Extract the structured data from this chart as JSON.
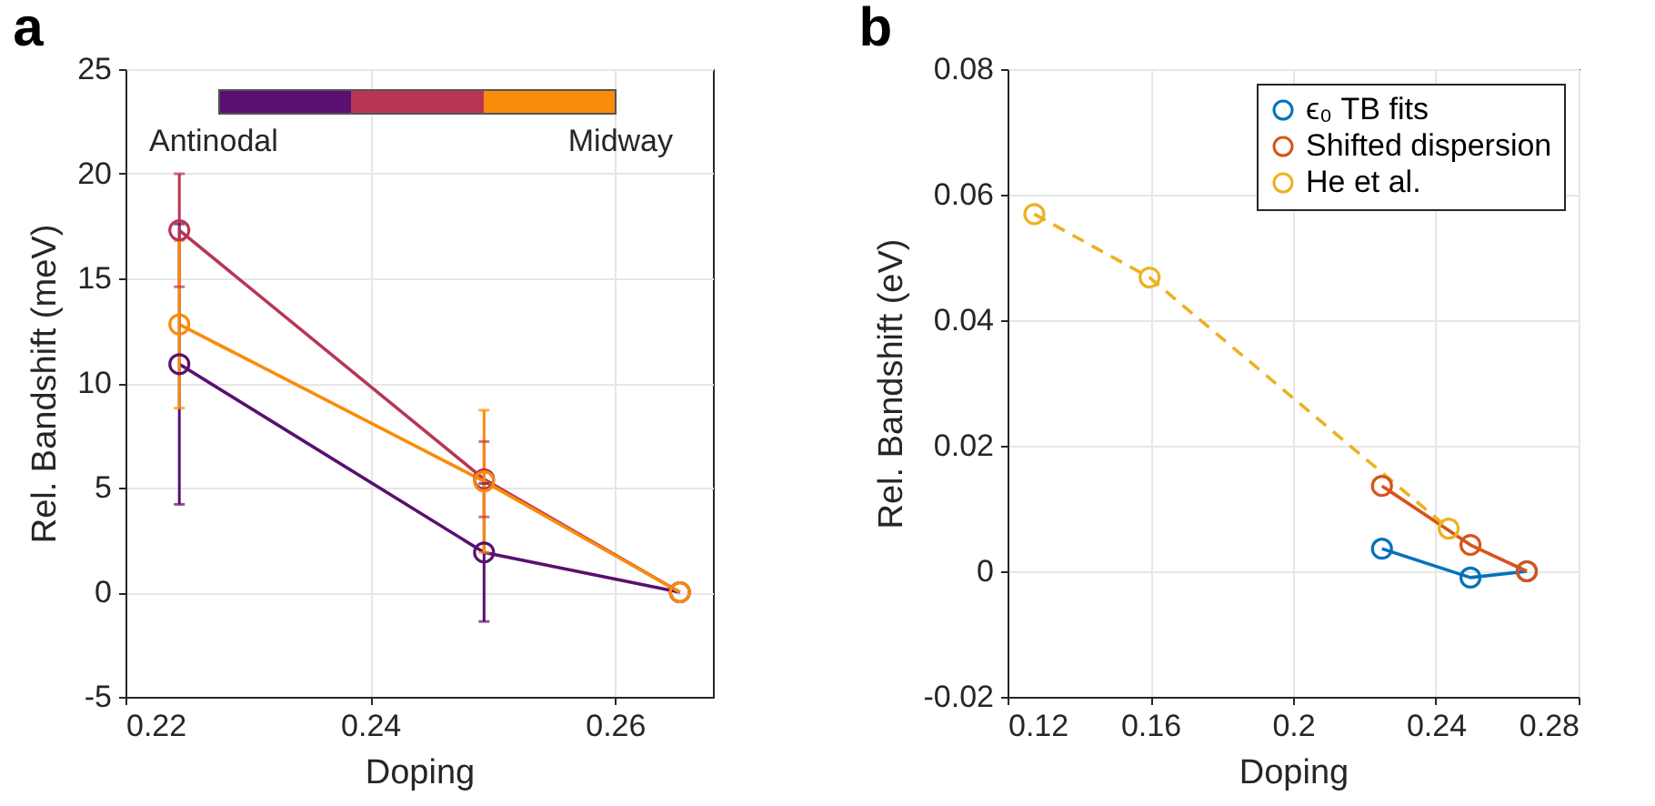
{
  "chart_data": [
    {
      "type": "line",
      "title": "a",
      "xlabel": "Doping",
      "ylabel": "Rel. Bandshift (meV)",
      "x": [
        0.2244,
        0.2493,
        0.2653
      ],
      "xlim": [
        0.22,
        0.268
      ],
      "xticks": [
        0.22,
        0.24,
        0.26
      ],
      "ylim": [
        -5,
        25
      ],
      "yticks": [
        -5,
        0,
        5,
        10,
        15,
        20,
        25
      ],
      "grid": true,
      "legend": false,
      "marker": "circle",
      "annotations": [
        "Antinodal",
        "Midway"
      ],
      "series": [
        {
          "color": "#5a1070",
          "values": [
            10.9,
            1.9,
            0
          ],
          "errors": [
            6.7,
            3.3,
            null
          ]
        },
        {
          "color": "#b83655",
          "values": [
            17.3,
            5.4,
            0
          ],
          "errors": [
            2.7,
            1.8,
            null
          ]
        },
        {
          "color": "#f98c0a",
          "values": [
            12.8,
            5.3,
            0
          ],
          "errors": [
            4.0,
            3.4,
            null
          ]
        }
      ]
    },
    {
      "type": "line",
      "title": "b",
      "xlabel": "Doping",
      "ylabel": "Rel. Bandshift (eV)",
      "xlim": [
        0.12,
        0.28
      ],
      "xticks": [
        0.12,
        0.16,
        0.2,
        0.24,
        0.28
      ],
      "ylim": [
        -0.02,
        0.08
      ],
      "yticks": [
        -0.02,
        0,
        0.02,
        0.04,
        0.06,
        0.08
      ],
      "grid": true,
      "legend": "top right",
      "marker": "circle",
      "series": [
        {
          "name": "ϵ₀ TB fits",
          "color": "#0072bd",
          "x": [
            0.2249,
            0.2497,
            0.2655
          ],
          "values": [
            0.0036,
            -0.001,
            0
          ]
        },
        {
          "name": "Shifted dispersion",
          "color": "#d95319",
          "x": [
            0.2249,
            0.2497,
            0.2655
          ],
          "values": [
            0.0136,
            0.0042,
            0
          ]
        },
        {
          "name": "He et al.",
          "color": "#edb120",
          "line_style": "dashed",
          "x": [
            0.1275,
            0.1598,
            0.2436
          ],
          "values": [
            0.0569,
            0.0468,
            0.0068
          ]
        }
      ]
    }
  ]
}
